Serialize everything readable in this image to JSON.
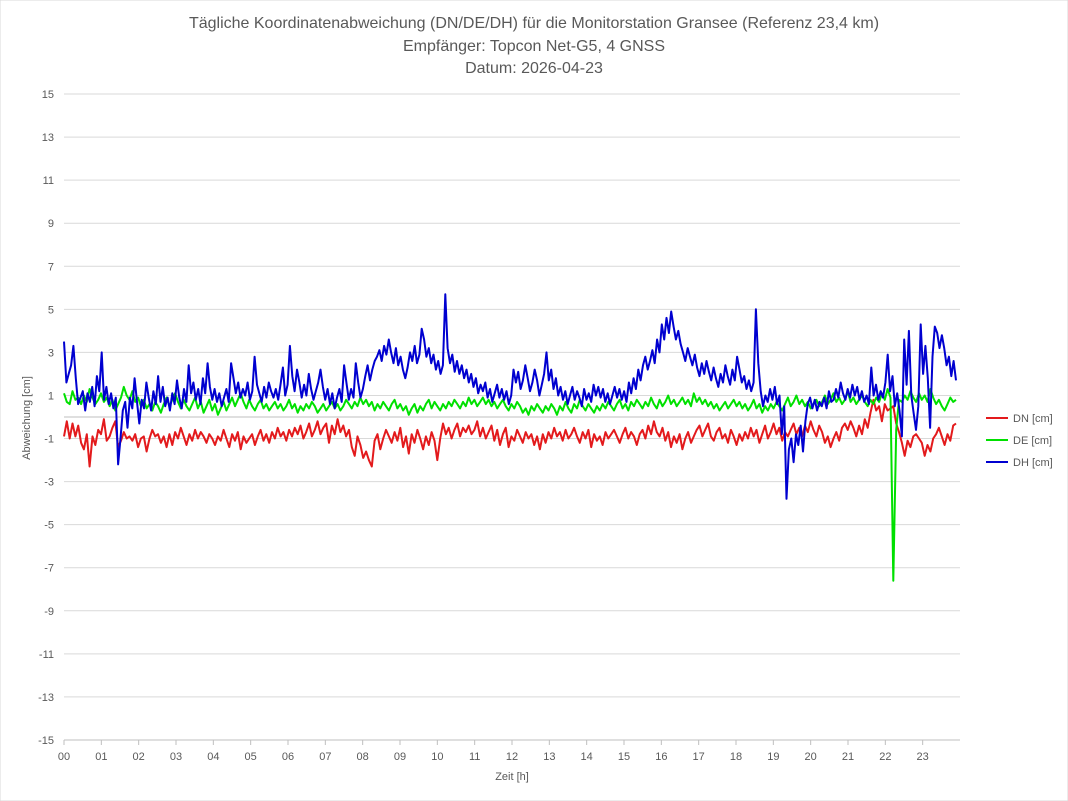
{
  "chart_data": {
    "type": "line",
    "title": "Tägliche Koordinatenabweichung (DN/DE/DH) für die Monitorstation Gransee (Referenz 23,4 km)",
    "subtitle": "Empfänger: Topcon Net-G5, 4 GNSS",
    "date_line": "Datum: 2026-04-23",
    "xlabel": "Zeit [h]",
    "ylabel": "Abweichung [cm]",
    "xlim": [
      0,
      24
    ],
    "ylim": [
      -15,
      15
    ],
    "x_ticks": [
      "00",
      "01",
      "02",
      "03",
      "04",
      "05",
      "06",
      "07",
      "08",
      "09",
      "10",
      "11",
      "12",
      "13",
      "14",
      "15",
      "16",
      "17",
      "18",
      "19",
      "20",
      "21",
      "22",
      "23"
    ],
    "y_ticks": [
      "15",
      "13",
      "11",
      "9",
      "7",
      "5",
      "3",
      "1",
      "-1",
      "-3",
      "-5",
      "-7",
      "-9",
      "-11",
      "-13",
      "-15"
    ],
    "grid": "horizontal",
    "legend_position": "right",
    "x_step_hours": 0.0417,
    "series": [
      {
        "name": "DN [cm]",
        "color": "#e31a1c",
        "values": [
          -0.9,
          -0.2,
          -1.0,
          -0.3,
          -0.9,
          -0.4,
          -1.2,
          -1.5,
          -0.8,
          -2.3,
          -0.9,
          -1.3,
          -0.6,
          -0.8,
          -0.1,
          -1.1,
          -0.9,
          -0.5,
          -0.2,
          -1.4,
          -1.1,
          -0.7,
          -1.0,
          -0.9,
          -1.1,
          -0.8,
          -1.4,
          -1.0,
          -0.9,
          -1.6,
          -1.0,
          -0.6,
          -0.9,
          -0.8,
          -1.2,
          -0.9,
          -1.4,
          -0.8,
          -1.3,
          -0.7,
          -1.0,
          -0.5,
          -0.9,
          -1.3,
          -0.8,
          -1.1,
          -0.6,
          -1.0,
          -0.7,
          -0.9,
          -1.2,
          -0.8,
          -1.0,
          -1.3,
          -0.9,
          -1.1,
          -0.6,
          -1.0,
          -1.4,
          -0.8,
          -1.1,
          -0.7,
          -1.5,
          -0.9,
          -1.2,
          -1.0,
          -0.8,
          -1.3,
          -0.9,
          -0.6,
          -1.1,
          -0.8,
          -1.2,
          -0.7,
          -1.0,
          -0.5,
          -0.9,
          -0.7,
          -1.1,
          -0.6,
          -0.9,
          -0.5,
          -0.8,
          -0.4,
          -1.0,
          -0.7,
          -0.3,
          -0.9,
          -0.6,
          -0.2,
          -0.8,
          -0.5,
          -0.3,
          -1.2,
          -0.4,
          -0.8,
          -0.1,
          -0.7,
          -0.4,
          -0.9,
          -0.6,
          -1.4,
          -1.8,
          -0.9,
          -1.3,
          -1.9,
          -1.6,
          -2.0,
          -2.3,
          -1.1,
          -0.8,
          -1.5,
          -1.0,
          -0.6,
          -0.9,
          -1.2,
          -0.7,
          -1.1,
          -0.5,
          -1.4,
          -0.9,
          -1.7,
          -0.8,
          -1.2,
          -0.6,
          -1.0,
          -1.5,
          -0.9,
          -1.3,
          -0.7,
          -1.1,
          -2.0,
          -1.0,
          -0.3,
          -0.8,
          -0.5,
          -1.0,
          -0.6,
          -0.3,
          -0.9,
          -0.5,
          -0.7,
          -0.4,
          -0.8,
          -0.6,
          -0.2,
          -0.9,
          -0.5,
          -1.0,
          -0.7,
          -0.4,
          -1.1,
          -0.6,
          -1.3,
          -0.8,
          -0.5,
          -1.4,
          -0.9,
          -1.1,
          -0.6,
          -0.9,
          -1.2,
          -0.7,
          -1.0,
          -0.8,
          -1.3,
          -0.9,
          -1.5,
          -0.8,
          -1.2,
          -0.7,
          -1.0,
          -0.5,
          -0.9,
          -0.7,
          -1.1,
          -0.6,
          -1.0,
          -0.8,
          -0.5,
          -0.9,
          -1.2,
          -0.7,
          -1.0,
          -0.6,
          -1.4,
          -0.8,
          -1.1,
          -0.9,
          -1.3,
          -0.7,
          -1.0,
          -0.8,
          -0.6,
          -0.9,
          -1.2,
          -0.8,
          -0.5,
          -1.0,
          -0.7,
          -0.9,
          -1.3,
          -0.8,
          -0.6,
          -1.0,
          -0.4,
          -0.8,
          -0.2,
          -0.7,
          -0.9,
          -0.5,
          -1.1,
          -0.7,
          -1.4,
          -0.9,
          -1.2,
          -0.8,
          -1.5,
          -1.0,
          -0.7,
          -1.2,
          -0.9,
          -0.6,
          -0.4,
          -0.9,
          -0.6,
          -0.3,
          -0.9,
          -1.1,
          -0.7,
          -0.5,
          -1.0,
          -0.8,
          -1.2,
          -0.6,
          -0.9,
          -1.3,
          -0.8,
          -1.1,
          -0.7,
          -1.0,
          -0.5,
          -0.9,
          -0.6,
          -1.2,
          -0.8,
          -0.4,
          -1.0,
          -0.7,
          -0.3,
          -0.8,
          -0.5,
          -1.1,
          -0.7,
          -0.9,
          -0.6,
          -0.3,
          -0.8,
          -0.5,
          -0.9,
          -0.4,
          -0.7,
          -0.2,
          -0.6,
          -0.9,
          -0.4,
          -0.7,
          -1.2,
          -0.9,
          -1.4,
          -1.0,
          -0.7,
          -1.1,
          -0.5,
          -0.3,
          -0.6,
          -0.2,
          -0.5,
          -0.9,
          -0.4,
          -0.8,
          -0.1,
          -0.5,
          0.2,
          0.8,
          0.3,
          0.5,
          -0.2,
          0.6,
          0.3,
          0.4,
          0.5,
          -0.3,
          -0.7,
          -1.2,
          -1.8,
          -1.1,
          -1.4,
          -0.9,
          -0.8,
          -1.0,
          -1.2,
          -1.8,
          -1.3,
          -1.6,
          -1.0,
          -0.8,
          -0.5,
          -0.9,
          -1.3,
          -0.8,
          -1.1,
          -0.4,
          -0.3
        ]
      },
      {
        "name": "DE [cm]",
        "color": "#00e000",
        "values": [
          1.1,
          0.7,
          0.6,
          1.2,
          0.8,
          0.9,
          0.6,
          1.0,
          0.7,
          1.3,
          0.9,
          0.6,
          0.8,
          1.1,
          0.7,
          0.9,
          0.5,
          0.8,
          0.3,
          0.6,
          0.9,
          1.4,
          1.0,
          0.8,
          1.2,
          0.7,
          0.9,
          0.5,
          0.8,
          0.4,
          0.6,
          0.3,
          0.7,
          0.5,
          0.2,
          0.6,
          0.9,
          0.5,
          0.8,
          1.1,
          0.7,
          0.4,
          0.8,
          0.5,
          0.3,
          0.6,
          0.9,
          0.4,
          0.7,
          0.2,
          0.5,
          0.8,
          0.3,
          0.6,
          0.1,
          0.4,
          0.7,
          0.3,
          0.6,
          0.9,
          0.5,
          0.8,
          1.1,
          0.7,
          0.4,
          0.8,
          0.5,
          0.3,
          0.6,
          0.8,
          0.4,
          0.6,
          0.3,
          0.5,
          0.7,
          0.4,
          0.6,
          0.3,
          0.5,
          0.8,
          0.4,
          0.6,
          0.2,
          0.5,
          0.3,
          0.6,
          0.4,
          0.7,
          0.5,
          0.2,
          0.4,
          0.6,
          0.3,
          0.5,
          0.7,
          0.4,
          0.6,
          0.3,
          0.5,
          0.8,
          0.6,
          0.4,
          0.7,
          0.5,
          0.9,
          0.6,
          0.8,
          0.5,
          0.7,
          0.3,
          0.6,
          0.4,
          0.7,
          0.5,
          0.3,
          0.6,
          0.8,
          0.4,
          0.6,
          0.3,
          0.5,
          0.1,
          0.4,
          0.6,
          0.2,
          0.5,
          0.3,
          0.6,
          0.8,
          0.4,
          0.7,
          0.5,
          0.3,
          0.6,
          0.4,
          0.7,
          0.5,
          0.8,
          0.6,
          0.4,
          0.7,
          0.5,
          0.9,
          0.6,
          0.8,
          0.5,
          0.7,
          0.9,
          0.6,
          0.8,
          0.5,
          0.7,
          0.4,
          0.6,
          0.8,
          0.5,
          0.3,
          0.6,
          0.4,
          0.7,
          0.5,
          0.2,
          0.4,
          0.1,
          0.5,
          0.3,
          0.6,
          0.4,
          0.2,
          0.5,
          0.3,
          0.6,
          0.4,
          0.1,
          0.5,
          0.3,
          0.7,
          0.4,
          0.2,
          0.6,
          0.4,
          0.8,
          0.5,
          0.3,
          0.6,
          0.4,
          0.2,
          0.5,
          0.3,
          0.6,
          0.4,
          0.7,
          0.5,
          0.3,
          0.6,
          0.8,
          0.4,
          0.6,
          0.3,
          0.7,
          0.5,
          0.8,
          0.6,
          0.4,
          0.7,
          0.5,
          0.9,
          0.6,
          0.4,
          0.8,
          0.5,
          0.7,
          1.0,
          0.6,
          0.8,
          0.5,
          0.7,
          0.9,
          0.6,
          0.8,
          0.5,
          1.1,
          0.7,
          0.9,
          0.6,
          0.8,
          0.5,
          0.7,
          0.4,
          0.6,
          0.3,
          0.5,
          0.7,
          0.4,
          0.6,
          0.8,
          0.5,
          0.7,
          0.4,
          0.6,
          0.3,
          0.5,
          0.8,
          0.4,
          0.6,
          0.2,
          0.5,
          0.3,
          0.6,
          0.4,
          0.7,
          0.5,
          0.3,
          0.6,
          0.9,
          0.5,
          0.7,
          1.0,
          0.6,
          0.8,
          0.5,
          0.7,
          0.4,
          0.6,
          0.8,
          0.5,
          0.7,
          1.0,
          0.6,
          0.8,
          1.1,
          0.7,
          0.9,
          0.6,
          0.8,
          1.2,
          0.7,
          0.9,
          0.6,
          0.8,
          1.0,
          0.7,
          0.5,
          0.8,
          0.6,
          0.9,
          0.7,
          1.1,
          0.8,
          1.3,
          0.9,
          -7.6,
          -0.6,
          0.8,
          0.7,
          1.0,
          0.8,
          1.2,
          0.9,
          0.7,
          1.1,
          0.8,
          1.0,
          0.7,
          1.3,
          0.9,
          0.6,
          0.8,
          0.5,
          0.3,
          0.6,
          0.9,
          0.7,
          0.8
        ]
      },
      {
        "name": "DH [cm]",
        "color": "#0000d0",
        "values": [
          3.5,
          1.6,
          2.0,
          2.4,
          3.3,
          1.8,
          0.6,
          0.9,
          1.2,
          0.3,
          1.1,
          0.7,
          1.4,
          0.5,
          1.9,
          1.2,
          3.0,
          0.8,
          1.4,
          0.6,
          1.1,
          0.4,
          0.9,
          -2.2,
          -1.0,
          0.3,
          0.7,
          -0.5,
          0.9,
          0.4,
          1.8,
          0.7,
          -0.3,
          0.8,
          0.4,
          1.6,
          0.9,
          0.3,
          1.2,
          0.6,
          1.9,
          0.7,
          1.4,
          0.5,
          0.9,
          0.3,
          1.1,
          0.6,
          1.7,
          0.9,
          0.4,
          1.3,
          0.7,
          2.4,
          1.1,
          1.6,
          0.8,
          1.3,
          0.6,
          1.8,
          1.1,
          2.5,
          1.4,
          0.8,
          1.3,
          0.7,
          1.1,
          0.5,
          0.9,
          1.3,
          0.7,
          2.5,
          1.8,
          1.1,
          1.6,
          0.9,
          1.3,
          1.0,
          1.6,
          0.8,
          1.2,
          2.8,
          1.5,
          1.1,
          0.7,
          1.4,
          0.9,
          1.6,
          1.2,
          0.9,
          1.3,
          0.8,
          1.5,
          2.3,
          1.0,
          1.5,
          3.3,
          1.9,
          1.2,
          2.2,
          1.6,
          0.9,
          1.5,
          1.0,
          2.0,
          1.3,
          0.8,
          1.2,
          1.6,
          2.2,
          1.4,
          0.8,
          1.3,
          0.6,
          1.1,
          0.4,
          0.9,
          1.3,
          0.7,
          2.4,
          1.6,
          0.8,
          1.3,
          0.9,
          2.5,
          1.6,
          0.9,
          1.3,
          1.9,
          2.4,
          1.7,
          2.2,
          2.6,
          2.8,
          3.1,
          2.6,
          3.3,
          2.9,
          3.6,
          3.0,
          2.5,
          3.2,
          2.4,
          2.8,
          2.2,
          1.8,
          2.3,
          3.0,
          2.6,
          3.3,
          2.5,
          2.9,
          4.1,
          3.6,
          2.8,
          3.2,
          2.5,
          2.9,
          2.2,
          2.6,
          2.0,
          2.4,
          5.7,
          3.2,
          2.5,
          2.9,
          2.1,
          2.6,
          2.0,
          2.4,
          1.8,
          2.2,
          1.6,
          2.0,
          1.4,
          1.8,
          1.1,
          1.5,
          1.2,
          1.6,
          0.9,
          1.3,
          0.7,
          1.1,
          1.5,
          0.9,
          1.3,
          0.8,
          1.2,
          0.6,
          1.0,
          2.2,
          1.6,
          2.1,
          1.3,
          1.7,
          2.4,
          1.8,
          1.2,
          1.6,
          2.2,
          1.7,
          1.0,
          1.5,
          2.0,
          3.0,
          1.7,
          2.2,
          1.3,
          1.8,
          1.0,
          1.4,
          0.8,
          1.2,
          0.6,
          1.0,
          1.4,
          0.8,
          1.2,
          0.9,
          0.5,
          1.3,
          0.8,
          1.1,
          0.7,
          1.5,
          1.0,
          1.4,
          0.9,
          1.3,
          0.7,
          1.1,
          0.6,
          1.0,
          1.4,
          0.9,
          1.3,
          0.8,
          1.2,
          0.7,
          1.6,
          1.1,
          1.8,
          1.3,
          2.2,
          1.7,
          2.4,
          2.8,
          2.2,
          2.6,
          3.1,
          2.5,
          3.6,
          3.0,
          4.3,
          3.6,
          4.6,
          3.9,
          4.9,
          4.2,
          3.6,
          4.0,
          3.4,
          3.0,
          2.6,
          3.2,
          2.8,
          2.4,
          2.9,
          2.3,
          1.9,
          2.5,
          2.0,
          2.6,
          2.1,
          1.7,
          2.3,
          1.8,
          1.4,
          2.0,
          1.6,
          2.4,
          1.9,
          1.5,
          2.2,
          1.7,
          2.8,
          2.2,
          1.6,
          1.9,
          1.3,
          1.7,
          1.2,
          1.6,
          5.0,
          2.5,
          1.2,
          0.5,
          1.0,
          0.7,
          1.3,
          0.8,
          1.4,
          0.6,
          1.0,
          -0.8,
          0.5,
          -3.8,
          -1.5,
          -1.0,
          -2.1,
          -0.8,
          -1.3,
          -0.4,
          -1.6,
          -0.2,
          0.6,
          0.9,
          0.4,
          0.8,
          0.3,
          0.7,
          0.5,
          0.9,
          0.4,
          1.2,
          0.7,
          0.8,
          1.3,
          0.9,
          1.6,
          1.1,
          0.8,
          1.3,
          0.9,
          1.5,
          1.0,
          1.4,
          0.8,
          1.2,
          0.7,
          1.0,
          0.6,
          2.3,
          1.0,
          1.5,
          0.8,
          1.2,
          0.9,
          1.6,
          2.9,
          1.2,
          1.9,
          0.5,
          1.1,
          0.3,
          -0.9,
          3.6,
          1.5,
          4.0,
          1.0,
          0.2,
          -0.6,
          0.5,
          4.3,
          2.0,
          3.3,
          1.8,
          -0.5,
          2.8,
          4.2,
          3.9,
          3.2,
          3.8,
          3.2,
          2.4,
          2.8,
          1.9,
          2.6,
          1.7
        ]
      }
    ]
  }
}
